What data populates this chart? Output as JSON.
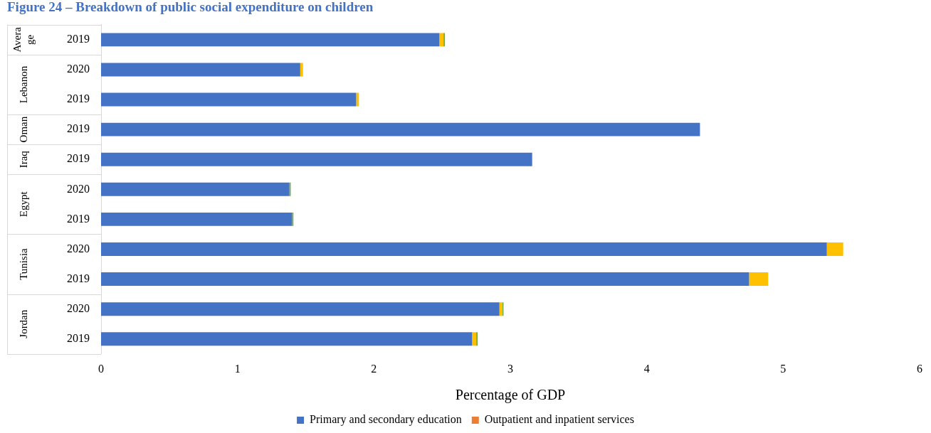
{
  "chart_data": {
    "type": "bar",
    "orientation": "horizontal",
    "stacked": true,
    "title": "Figure 24 – Breakdown of public social expenditure on children",
    "xlabel": "Percentage of GDP",
    "categories": [
      "2019",
      "2020",
      "2019",
      "2019",
      "2019",
      "2020",
      "2019",
      "2020",
      "2019",
      "2020",
      "2019"
    ],
    "annotations": [
      "Average",
      "Lebanon",
      "Oman",
      "Iraq",
      "Egypt",
      "Tunisia",
      "Jordan"
    ],
    "series": [
      {
        "name": "Primary and secondary education",
        "color": "#4472c4",
        "values": [
          2.48,
          1.46,
          1.87,
          4.39,
          3.16,
          1.38,
          1.4,
          5.32,
          4.75,
          2.92,
          2.72
        ]
      },
      {
        "name": "Outpatient and inpatient services",
        "color": "#ed7d31",
        "values": [
          0,
          0,
          0,
          0,
          0,
          0,
          0,
          0,
          0,
          0,
          0
        ]
      },
      {
        "color": "#ffc000",
        "values": [
          0.03,
          0.02,
          0.02,
          0,
          0,
          0,
          0,
          0.12,
          0.14,
          0.02,
          0.03
        ]
      },
      {
        "color": "#70ad47",
        "values": [
          0.01,
          0,
          0,
          0,
          0,
          0.01,
          0.01,
          0,
          0,
          0.01,
          0.01
        ]
      }
    ],
    "xlim": [
      0,
      6
    ],
    "xticks": [
      0,
      1,
      2,
      3,
      4,
      5,
      6
    ],
    "grid": false,
    "legend": "bottom"
  }
}
